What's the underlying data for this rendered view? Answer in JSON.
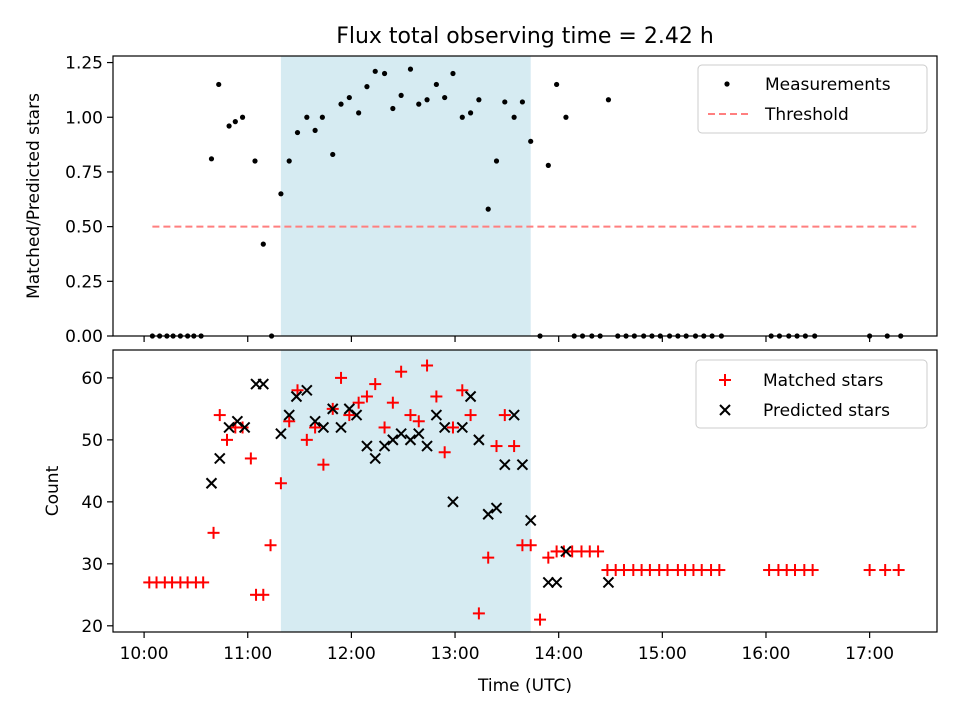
{
  "figure": {
    "title": "Flux total observing time = 2.42 h"
  },
  "chart_data": [
    {
      "type": "scatter",
      "panel": "top",
      "title": "Flux total observing time = 2.42 h",
      "xlabel": "",
      "ylabel": "Matched/Predicted stars",
      "xlim": [
        9.7,
        17.65
      ],
      "ylim": [
        0,
        1.28
      ],
      "yticks": [
        0,
        0.25,
        0.5,
        0.75,
        1.0,
        1.25
      ],
      "ytick_labels": [
        "0.00",
        "0.25",
        "0.50",
        "0.75",
        "1.00",
        "1.25"
      ],
      "grid": false,
      "legend_position": "top-right",
      "shaded_interval": {
        "x0": 11.32,
        "x1": 13.73,
        "color": "#add8e6"
      },
      "series": [
        {
          "name": "Measurements",
          "kind": "scatter",
          "marker": "dot",
          "color": "#000000",
          "x": [
            10.08,
            10.15,
            10.22,
            10.28,
            10.35,
            10.42,
            10.48,
            10.55,
            10.65,
            10.72,
            10.82,
            10.88,
            10.95,
            11.07,
            11.15,
            11.23,
            11.32,
            11.4,
            11.48,
            11.57,
            11.65,
            11.72,
            11.82,
            11.9,
            11.98,
            12.07,
            12.15,
            12.23,
            12.32,
            12.4,
            12.48,
            12.57,
            12.65,
            12.73,
            12.82,
            12.9,
            12.98,
            13.07,
            13.15,
            13.23,
            13.32,
            13.4,
            13.48,
            13.57,
            13.65,
            13.73,
            13.82,
            13.9,
            13.98,
            14.07,
            14.15,
            14.23,
            14.32,
            14.4,
            14.48,
            14.57,
            14.65,
            14.73,
            14.82,
            14.9,
            14.98,
            15.07,
            15.15,
            15.23,
            15.32,
            15.4,
            15.48,
            15.57,
            16.05,
            16.13,
            16.22,
            16.3,
            16.38,
            16.47,
            17.0,
            17.17,
            17.3
          ],
          "y": [
            0,
            0,
            0,
            0,
            0,
            0,
            0,
            0,
            0.81,
            1.15,
            0.96,
            0.98,
            1.0,
            0.8,
            0.42,
            0,
            0.65,
            0.8,
            0.93,
            1.0,
            0.94,
            1.0,
            0.83,
            1.06,
            1.09,
            1.02,
            1.14,
            1.21,
            1.2,
            1.04,
            1.1,
            1.22,
            1.06,
            1.08,
            1.15,
            1.09,
            1.2,
            1.0,
            1.02,
            1.08,
            0.58,
            0.8,
            1.07,
            1.0,
            1.07,
            0.89,
            0,
            0.78,
            1.15,
            1.0,
            0,
            0,
            0,
            0,
            1.08,
            0,
            0,
            0,
            0,
            0,
            0,
            0,
            0,
            0,
            0,
            0,
            0,
            0,
            0,
            0,
            0,
            0,
            0,
            0,
            0,
            0,
            0
          ]
        },
        {
          "name": "Threshold",
          "kind": "line",
          "style": "dashed",
          "color": "#ff7f7f",
          "x": [
            10.08,
            17.45
          ],
          "y": [
            0.5,
            0.5
          ]
        }
      ]
    },
    {
      "type": "scatter",
      "panel": "bottom",
      "xlabel": "Time (UTC)",
      "ylabel": "Count",
      "xlim": [
        9.7,
        17.65
      ],
      "ylim": [
        19,
        64.5
      ],
      "xticks": [
        10,
        11,
        12,
        13,
        14,
        15,
        16,
        17
      ],
      "xtick_labels": [
        "10:00",
        "11:00",
        "12:00",
        "13:00",
        "14:00",
        "15:00",
        "16:00",
        "17:00"
      ],
      "yticks": [
        20,
        30,
        40,
        50,
        60
      ],
      "ytick_labels": [
        "20",
        "30",
        "40",
        "50",
        "60"
      ],
      "grid": false,
      "legend_position": "top-right",
      "shaded_interval": {
        "x0": 11.32,
        "x1": 13.73,
        "color": "#add8e6"
      },
      "series": [
        {
          "name": "Matched stars",
          "kind": "scatter",
          "marker": "plus",
          "color": "#ff0000",
          "x": [
            10.05,
            10.12,
            10.2,
            10.27,
            10.35,
            10.42,
            10.5,
            10.57,
            10.67,
            10.73,
            10.8,
            10.88,
            10.95,
            11.03,
            11.08,
            11.15,
            11.22,
            11.32,
            11.4,
            11.48,
            11.57,
            11.65,
            11.73,
            11.82,
            11.9,
            11.98,
            12.07,
            12.15,
            12.23,
            12.32,
            12.4,
            12.48,
            12.57,
            12.65,
            12.73,
            12.82,
            12.9,
            12.98,
            13.07,
            13.15,
            13.23,
            13.32,
            13.4,
            13.48,
            13.57,
            13.65,
            13.73,
            13.82,
            13.9,
            13.98,
            14.05,
            14.13,
            14.22,
            14.3,
            14.38,
            14.47,
            14.55,
            14.63,
            14.72,
            14.8,
            14.88,
            14.97,
            15.05,
            15.15,
            15.22,
            15.3,
            15.38,
            15.47,
            15.55,
            16.03,
            16.12,
            16.2,
            16.28,
            16.37,
            16.45,
            17.0,
            17.15,
            17.28
          ],
          "y": [
            27,
            27,
            27,
            27,
            27,
            27,
            27,
            27,
            35,
            54,
            50,
            52,
            52,
            47,
            25,
            25,
            33,
            43,
            53,
            58,
            50,
            52,
            46,
            55,
            60,
            54,
            56,
            57,
            59,
            52,
            56,
            61,
            54,
            53,
            62,
            57,
            48,
            52,
            58,
            54,
            22,
            31,
            49,
            54,
            49,
            33,
            33,
            21,
            31,
            32,
            32,
            32,
            32,
            32,
            32,
            29,
            29,
            29,
            29,
            29,
            29,
            29,
            29,
            29,
            29,
            29,
            29,
            29,
            29,
            29,
            29,
            29,
            29,
            29,
            29,
            29,
            29,
            29
          ]
        },
        {
          "name": "Predicted stars",
          "kind": "scatter",
          "marker": "x",
          "color": "#000000",
          "x": [
            10.65,
            10.73,
            10.82,
            10.9,
            10.97,
            11.08,
            11.15,
            11.32,
            11.4,
            11.47,
            11.57,
            11.65,
            11.73,
            11.82,
            11.9,
            11.98,
            12.05,
            12.15,
            12.23,
            12.32,
            12.4,
            12.48,
            12.57,
            12.65,
            12.73,
            12.82,
            12.9,
            12.98,
            13.07,
            13.15,
            13.23,
            13.32,
            13.4,
            13.48,
            13.57,
            13.65,
            13.73,
            13.9,
            13.98,
            14.07,
            14.48
          ],
          "y": [
            43,
            47,
            52,
            53,
            52,
            59,
            59,
            51,
            54,
            57,
            58,
            53,
            52,
            55,
            52,
            55,
            54,
            49,
            47,
            49,
            50,
            51,
            50,
            51,
            49,
            54,
            52,
            40,
            52,
            57,
            50,
            38,
            39,
            46,
            54,
            46,
            37,
            27,
            27,
            32,
            27
          ]
        }
      ]
    }
  ]
}
